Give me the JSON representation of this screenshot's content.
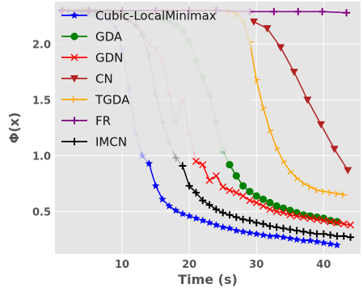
{
  "chart_data": {
    "type": "line",
    "xlabel": "Time (s)",
    "ylabel": "Φ(x)",
    "xlim": [
      0,
      45.5
    ],
    "ylim": [
      0.12,
      2.38
    ],
    "xticks": [
      10,
      20,
      30,
      40
    ],
    "yticks": [
      0.5,
      1.0,
      1.5,
      2.0
    ],
    "xtick_labels": [
      "10",
      "20",
      "30",
      "40"
    ],
    "ytick_labels": [
      "0.5",
      "1.0",
      "1.5",
      "2.0"
    ],
    "grid": true,
    "legend_position": "top-left",
    "series": [
      {
        "name": "Cubic-LocalMinimax",
        "color": "#0000ff",
        "marker": "star",
        "faded_until": 14,
        "x": [
          1,
          2,
          3,
          4,
          5,
          6,
          7,
          8,
          9,
          10,
          11,
          12,
          13,
          14,
          15,
          16,
          17,
          18,
          19,
          20,
          21,
          22,
          23,
          24,
          25,
          26,
          27,
          28,
          29,
          30,
          31,
          32,
          33,
          34,
          35,
          36,
          37,
          38,
          39,
          40,
          41,
          42
        ],
        "y": [
          2.3,
          2.29,
          2.28,
          2.27,
          2.26,
          2.25,
          2.24,
          2.22,
          2.15,
          1.95,
          1.6,
          1.2,
          1.0,
          0.93,
          0.73,
          0.61,
          0.55,
          0.51,
          0.48,
          0.46,
          0.44,
          0.42,
          0.4,
          0.38,
          0.36,
          0.35,
          0.33,
          0.32,
          0.31,
          0.3,
          0.29,
          0.28,
          0.28,
          0.27,
          0.26,
          0.25,
          0.24,
          0.24,
          0.23,
          0.22,
          0.21,
          0.2
        ]
      },
      {
        "name": "GDA",
        "color": "#008000",
        "marker": "circle",
        "faded_until": 26,
        "x": [
          4,
          5,
          6,
          7,
          8,
          9,
          10,
          11,
          12,
          13,
          14,
          15,
          16,
          17,
          18,
          19,
          20,
          21,
          22,
          23,
          24,
          25,
          26,
          27,
          28,
          29,
          30,
          31,
          32,
          33,
          34,
          35,
          36,
          37,
          38,
          39,
          40,
          41,
          42
        ],
        "y": [
          2.3,
          2.3,
          2.3,
          2.29,
          2.29,
          2.29,
          2.28,
          2.28,
          2.27,
          2.26,
          2.25,
          2.24,
          2.22,
          2.2,
          2.17,
          2.12,
          2.02,
          1.85,
          1.7,
          1.55,
          1.3,
          1.05,
          0.92,
          0.82,
          0.73,
          0.68,
          0.64,
          0.61,
          0.58,
          0.55,
          0.53,
          0.51,
          0.49,
          0.47,
          0.46,
          0.45,
          0.44,
          0.42,
          0.41
        ]
      },
      {
        "name": "GDN",
        "color": "#ff0000",
        "marker": "x",
        "faded_until": 21,
        "x": [
          1,
          3,
          5,
          7,
          9,
          10,
          11,
          12,
          13,
          14,
          15,
          16,
          17,
          18,
          19,
          20,
          21,
          22,
          23,
          24,
          25,
          26,
          27,
          28,
          29,
          30,
          31,
          32,
          33,
          34,
          35,
          36,
          37,
          38,
          39,
          40,
          41,
          42,
          43,
          44
        ],
        "y": [
          2.31,
          2.3,
          2.29,
          2.28,
          2.26,
          2.24,
          2.21,
          2.17,
          2.1,
          2.0,
          1.95,
          1.85,
          1.55,
          1.3,
          1.5,
          1.2,
          0.95,
          0.92,
          0.78,
          0.82,
          0.72,
          0.69,
          0.67,
          0.64,
          0.6,
          0.58,
          0.55,
          0.52,
          0.5,
          0.49,
          0.47,
          0.46,
          0.45,
          0.44,
          0.43,
          0.42,
          0.41,
          0.4,
          0.39,
          0.38
        ]
      },
      {
        "name": "CN",
        "color": "#b22222",
        "marker": "triangle-down",
        "faded_until": 0,
        "x": [
          29.6,
          31.6,
          33.6,
          35.6,
          37.6,
          39.6,
          41.6,
          43.6
        ],
        "y": [
          2.2,
          2.14,
          1.97,
          1.75,
          1.5,
          1.28,
          1.06,
          0.87
        ]
      },
      {
        "name": "TGDA",
        "color": "#ffa500",
        "marker": "tri-right",
        "faded_until": 0,
        "x": [
          1.5,
          5,
          10,
          15,
          20,
          24,
          26,
          27,
          28,
          29,
          30,
          31,
          32,
          33,
          34,
          35,
          36,
          37,
          38,
          39,
          40,
          41,
          42,
          43
        ],
        "y": [
          2.3,
          2.3,
          2.3,
          2.3,
          2.3,
          2.3,
          2.29,
          2.27,
          2.21,
          2.02,
          1.68,
          1.43,
          1.23,
          1.07,
          0.95,
          0.86,
          0.8,
          0.75,
          0.72,
          0.69,
          0.68,
          0.67,
          0.66,
          0.65
        ]
      },
      {
        "name": "FR",
        "color": "#800080",
        "marker": "plus",
        "faded_until": 0,
        "x": [
          1,
          5,
          10,
          15,
          20,
          24,
          29,
          32.6,
          36.2,
          39.8,
          43.4
        ],
        "y": [
          2.3,
          2.3,
          2.3,
          2.3,
          2.3,
          2.3,
          2.29,
          2.29,
          2.29,
          2.29,
          2.28
        ]
      },
      {
        "name": "IMCN",
        "color": "#000000",
        "marker": "plus",
        "faded_until": 19,
        "x": [
          2,
          4,
          6,
          8,
          10,
          11,
          12,
          13,
          14,
          15,
          16,
          17,
          18,
          19,
          20,
          21,
          22,
          23,
          24,
          25,
          26,
          27,
          28,
          29,
          30,
          31,
          32,
          33,
          34,
          35,
          36,
          37,
          38,
          39,
          40,
          41,
          42,
          43,
          44
        ],
        "y": [
          2.3,
          2.29,
          2.28,
          2.27,
          2.25,
          2.22,
          2.17,
          2.08,
          1.9,
          1.55,
          1.3,
          1.12,
          0.98,
          0.91,
          0.73,
          0.67,
          0.6,
          0.56,
          0.52,
          0.49,
          0.47,
          0.45,
          0.43,
          0.42,
          0.4,
          0.39,
          0.37,
          0.36,
          0.35,
          0.34,
          0.33,
          0.32,
          0.31,
          0.3,
          0.3,
          0.29,
          0.28,
          0.28,
          0.27
        ]
      }
    ]
  }
}
